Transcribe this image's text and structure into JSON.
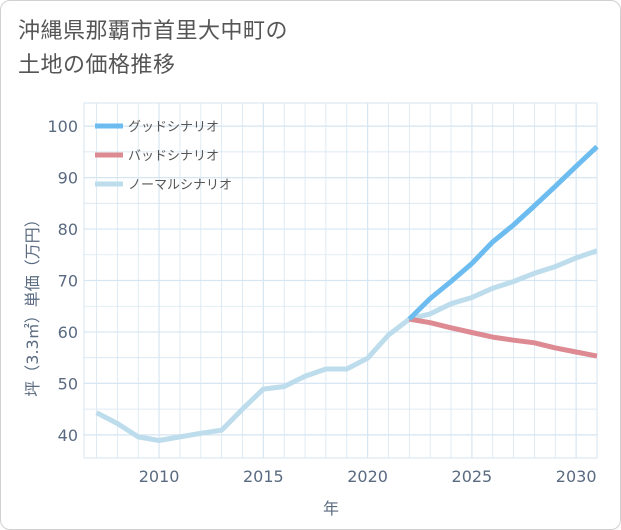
{
  "page": {
    "title_line1": "沖縄県那覇市首里大中町の",
    "title_line2": "土地の価格推移"
  },
  "chart_data": {
    "type": "line",
    "title": "沖縄県那覇市首里大中町の土地の価格推移",
    "xlabel": "年",
    "ylabel": "坪（3.3㎡）単価（万円）",
    "xlim": [
      2006.4,
      2031
    ],
    "ylim": [
      35.5,
      104.5
    ],
    "x_ticks": [
      2010,
      2015,
      2020,
      2025,
      2030
    ],
    "y_ticks": [
      40,
      50,
      60,
      70,
      80,
      90,
      100
    ],
    "grid": true,
    "legend_position": "top-left",
    "series": [
      {
        "name": "グッドシナリオ",
        "color": "#6cbcf0",
        "points": [
          [
            2022,
            62.5
          ],
          [
            2023,
            66.5
          ],
          [
            2024,
            69.8
          ],
          [
            2025,
            73.3
          ],
          [
            2026,
            77.5
          ],
          [
            2027,
            80.8
          ],
          [
            2028,
            84.5
          ],
          [
            2029,
            88.3
          ],
          [
            2030,
            92.2
          ],
          [
            2031,
            96.0
          ]
        ]
      },
      {
        "name": "バッドシナリオ",
        "color": "#dd8a92",
        "points": [
          [
            2022,
            62.5
          ],
          [
            2023,
            61.8
          ],
          [
            2024,
            60.8
          ],
          [
            2025,
            59.9
          ],
          [
            2026,
            59.0
          ],
          [
            2027,
            58.4
          ],
          [
            2028,
            57.9
          ],
          [
            2029,
            56.9
          ],
          [
            2030,
            56.1
          ],
          [
            2031,
            55.3
          ]
        ]
      },
      {
        "name": "ノーマルシナリオ",
        "color": "#bddcec",
        "points": [
          [
            2007,
            44.3
          ],
          [
            2008,
            42.2
          ],
          [
            2009,
            39.6
          ],
          [
            2010,
            38.9
          ],
          [
            2011,
            39.6
          ],
          [
            2012,
            40.3
          ],
          [
            2013,
            40.9
          ],
          [
            2014,
            45.0
          ],
          [
            2015,
            48.9
          ],
          [
            2016,
            49.4
          ],
          [
            2017,
            51.4
          ],
          [
            2018,
            52.8
          ],
          [
            2019,
            52.8
          ],
          [
            2020,
            54.9
          ],
          [
            2021,
            59.4
          ],
          [
            2022,
            62.5
          ],
          [
            2023,
            63.5
          ],
          [
            2024,
            65.5
          ],
          [
            2025,
            66.7
          ],
          [
            2026,
            68.5
          ],
          [
            2027,
            69.8
          ],
          [
            2028,
            71.4
          ],
          [
            2029,
            72.7
          ],
          [
            2030,
            74.4
          ],
          [
            2031,
            75.8
          ]
        ]
      }
    ]
  }
}
